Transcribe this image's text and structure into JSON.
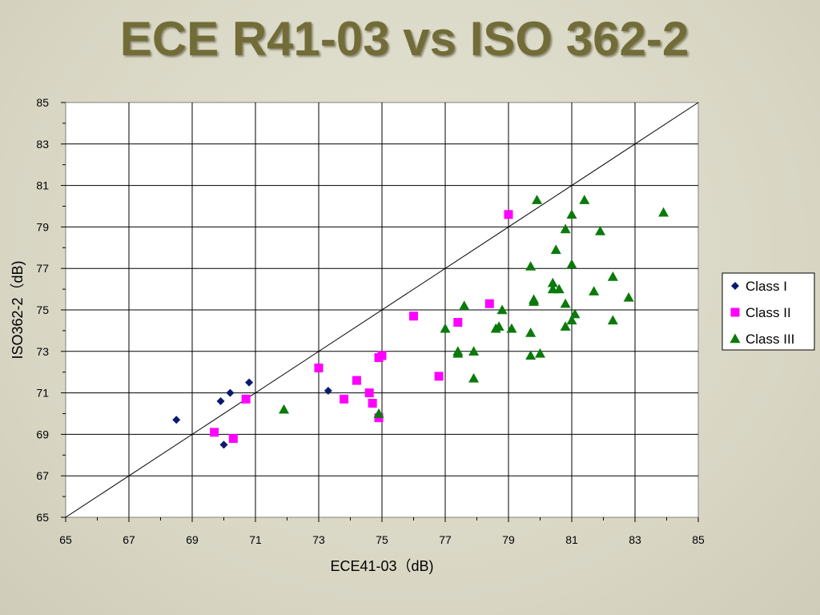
{
  "slide": {
    "title": "ECE R41-03 vs ISO 362-2"
  },
  "colors": {
    "title": "#726c38",
    "class_i": "#0a1a6e",
    "class_ii": "#ff00ff",
    "class_iii": "#0a7a0a"
  },
  "chart_data": {
    "type": "scatter",
    "xlabel": "ECE41-03（dB)",
    "ylabel": "ISO362-2（dB)",
    "xlim": [
      65,
      85
    ],
    "ylim": [
      65,
      85
    ],
    "xticks": [
      65,
      67,
      69,
      71,
      73,
      75,
      77,
      79,
      81,
      83,
      85
    ],
    "yticks": [
      65,
      67,
      69,
      71,
      73,
      75,
      77,
      79,
      81,
      83,
      85
    ],
    "grid": true,
    "legend_position": "right",
    "reference_line": {
      "from": [
        65,
        65
      ],
      "to": [
        85,
        85
      ]
    },
    "series": [
      {
        "name": "Class I",
        "marker": "diamond",
        "color": "#0a1a6e",
        "points": [
          [
            68.5,
            69.7
          ],
          [
            69.9,
            70.6
          ],
          [
            70.2,
            71.0
          ],
          [
            70.0,
            68.5
          ],
          [
            70.8,
            71.5
          ],
          [
            73.3,
            71.1
          ]
        ]
      },
      {
        "name": "Class II",
        "marker": "square",
        "color": "#ff00ff",
        "points": [
          [
            69.7,
            69.1
          ],
          [
            70.3,
            68.8
          ],
          [
            70.7,
            70.7
          ],
          [
            73.0,
            72.2
          ],
          [
            73.8,
            70.7
          ],
          [
            74.2,
            71.6
          ],
          [
            74.6,
            71.0
          ],
          [
            74.7,
            70.5
          ],
          [
            74.9,
            69.8
          ],
          [
            74.9,
            72.7
          ],
          [
            75.0,
            72.8
          ],
          [
            76.0,
            74.7
          ],
          [
            76.8,
            71.8
          ],
          [
            77.4,
            74.4
          ],
          [
            78.4,
            75.3
          ],
          [
            79.0,
            79.6
          ]
        ]
      },
      {
        "name": "Class III",
        "marker": "triangle",
        "color": "#0a7a0a",
        "points": [
          [
            71.9,
            70.2
          ],
          [
            74.9,
            70.0
          ],
          [
            77.0,
            74.1
          ],
          [
            77.4,
            73.0
          ],
          [
            77.4,
            72.9
          ],
          [
            77.6,
            75.2
          ],
          [
            77.9,
            73.0
          ],
          [
            77.9,
            71.7
          ],
          [
            78.6,
            74.1
          ],
          [
            78.7,
            74.2
          ],
          [
            78.8,
            75.0
          ],
          [
            79.1,
            74.1
          ],
          [
            79.7,
            77.1
          ],
          [
            79.7,
            73.9
          ],
          [
            79.7,
            72.8
          ],
          [
            79.8,
            75.5
          ],
          [
            79.8,
            75.4
          ],
          [
            79.9,
            80.3
          ],
          [
            80.0,
            72.9
          ],
          [
            80.4,
            76.3
          ],
          [
            80.4,
            76.0
          ],
          [
            80.5,
            77.9
          ],
          [
            80.6,
            76.0
          ],
          [
            80.8,
            78.9
          ],
          [
            80.8,
            75.3
          ],
          [
            80.8,
            74.2
          ],
          [
            81.0,
            79.6
          ],
          [
            81.0,
            77.2
          ],
          [
            81.0,
            74.5
          ],
          [
            81.1,
            74.8
          ],
          [
            81.4,
            80.3
          ],
          [
            81.7,
            75.9
          ],
          [
            81.9,
            78.8
          ],
          [
            82.3,
            76.6
          ],
          [
            82.3,
            74.5
          ],
          [
            82.8,
            75.6
          ],
          [
            83.9,
            79.7
          ]
        ]
      }
    ]
  }
}
